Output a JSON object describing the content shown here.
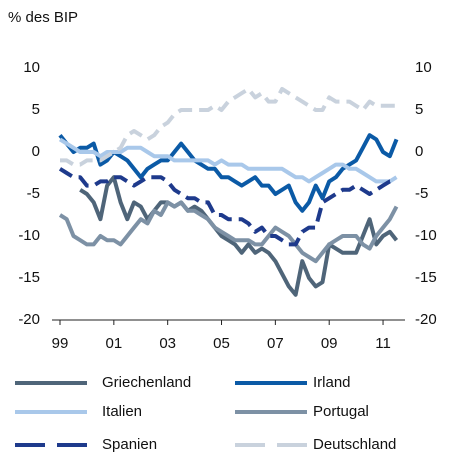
{
  "chart_data": {
    "type": "line",
    "y_label": "% des BIP",
    "categories": [
      "99",
      null,
      null,
      null,
      null,
      null,
      null,
      null,
      "01",
      null,
      null,
      null,
      null,
      null,
      null,
      null,
      "03",
      null,
      null,
      null,
      null,
      null,
      null,
      null,
      "05",
      null,
      null,
      null,
      null,
      null,
      null,
      null,
      "07",
      null,
      null,
      null,
      null,
      null,
      null,
      null,
      "09",
      null,
      null,
      null,
      null,
      null,
      null,
      null,
      "11",
      null,
      null
    ],
    "ylim": [
      -20,
      10
    ],
    "yticks": [
      -20,
      -15,
      -10,
      -5,
      0,
      5,
      10
    ],
    "y2lim": [
      -20,
      10
    ],
    "y2ticks": [
      -20,
      -15,
      -10,
      -5,
      0,
      5,
      10
    ],
    "series": [
      {
        "name": "Griechenland",
        "color": "#4f6579",
        "dashed": false,
        "values": [
          null,
          null,
          null,
          -4.5,
          -5,
          -6,
          -8,
          -4,
          -3,
          -6,
          -8,
          -6,
          -6.5,
          -8,
          -7,
          -6,
          -6,
          -6.5,
          -6,
          -7,
          -6.5,
          -7,
          -8,
          -9,
          -10,
          -10.5,
          -11,
          -12,
          -11,
          -12,
          -11.5,
          -12,
          -13,
          -14.5,
          -16,
          -17,
          -13,
          -15,
          -16,
          -15.5,
          -11,
          -11.5,
          -12,
          -12,
          -12,
          -10,
          -8,
          -11,
          -10,
          -9.5,
          -10.5
        ]
      },
      {
        "name": "Irland",
        "color": "#0b5aa6",
        "dashed": false,
        "values": [
          2,
          1,
          0,
          0.5,
          0.5,
          1,
          -1.5,
          -1,
          0,
          -0.5,
          -1,
          -2,
          -3,
          -2,
          -1.5,
          -1,
          -1,
          0,
          1,
          0,
          -1,
          -1.5,
          -2,
          -2,
          -3,
          -3,
          -3.5,
          -4,
          -3.5,
          -3,
          -4,
          -4,
          -5,
          -4.5,
          -4,
          -6,
          -7,
          -6,
          -4,
          -5.5,
          -3.5,
          -3,
          -2,
          -1.5,
          -1,
          0.5,
          2,
          1.5,
          0,
          -0.5,
          1.5
        ]
      },
      {
        "name": "Italien",
        "color": "#a9c8ea",
        "dashed": false,
        "values": [
          1.5,
          1,
          0.5,
          0,
          0,
          0,
          -0.5,
          0,
          0,
          0,
          0.5,
          0.5,
          0.5,
          0,
          -0.5,
          -0.5,
          -0.5,
          -1,
          -1,
          -1,
          -1,
          -1,
          -1,
          -1.5,
          -1,
          -1.5,
          -1.5,
          -1.5,
          -2,
          -2,
          -2,
          -2,
          -2,
          -2,
          -2.5,
          -3,
          -3,
          -3.5,
          -3,
          -2.5,
          -2,
          -1.5,
          -1.5,
          -2,
          -2,
          -2.5,
          -3,
          -3.5,
          -3.5,
          -3.5,
          -3
        ]
      },
      {
        "name": "Portugal",
        "color": "#7d91a5",
        "dashed": false,
        "values": [
          -7.5,
          -8,
          -10,
          -10.5,
          -11,
          -11,
          -10,
          -10.5,
          -10.5,
          -11,
          -10,
          -9,
          -8,
          -8.5,
          -7,
          -7.5,
          -6,
          -6.5,
          -6,
          -7,
          -7,
          -7.5,
          -8,
          -9,
          -9.5,
          -10,
          -10.5,
          -10.5,
          -10.5,
          -11,
          -11,
          -10,
          -9,
          -9.5,
          -10,
          -11,
          -12,
          -12.5,
          -13,
          -12,
          -11,
          -10.5,
          -10,
          -10,
          -10,
          -11,
          -11.5,
          -10,
          -9,
          -8,
          -6.5
        ]
      },
      {
        "name": "Spanien",
        "color": "#1e3a8c",
        "dashed": true,
        "values": [
          -2,
          -2.5,
          -3,
          -3,
          -4,
          -4,
          -3.5,
          -3.5,
          -3,
          -3,
          -3.5,
          -4,
          -3.5,
          -3,
          -3,
          -3,
          -3.5,
          -4.5,
          -5,
          -5.5,
          -5.5,
          -6,
          -6,
          -7.5,
          -7.5,
          -8,
          -8,
          -8,
          -8.5,
          -9.5,
          -9,
          -10,
          -10,
          -10.5,
          -11,
          -11,
          -9.5,
          -9,
          -9,
          -6,
          -5.5,
          -5,
          -4.5,
          -4.5,
          -4,
          -4.5,
          -5,
          -4.5,
          -4,
          -3.5,
          -3.5
        ]
      },
      {
        "name": "Deutschland",
        "color": "#c9d2dd",
        "dashed": true,
        "values": [
          -1,
          -1,
          -1.5,
          -1.5,
          -1,
          -1,
          -1,
          -0.5,
          0,
          0.5,
          2,
          2.5,
          2,
          1.5,
          2,
          3,
          3.5,
          4.5,
          5,
          5,
          5,
          5,
          5,
          5.5,
          5,
          6,
          6.5,
          7,
          7.5,
          6.5,
          7,
          6,
          6,
          7.5,
          7,
          6.5,
          6,
          5.5,
          5,
          5,
          6.5,
          6,
          6,
          6,
          5.5,
          5,
          6,
          5.5,
          5.5,
          5.5,
          5.5
        ]
      }
    ]
  }
}
